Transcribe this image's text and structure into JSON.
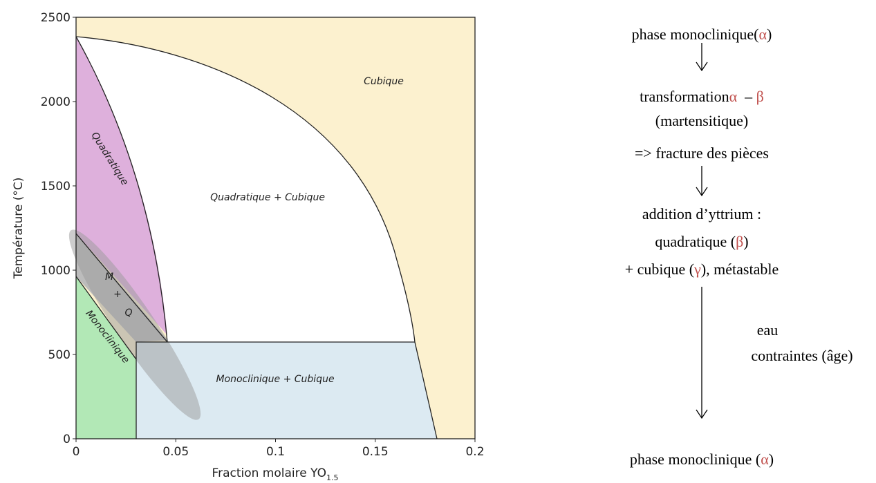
{
  "phase_diagram": {
    "x_label": "Fraction molaire YO",
    "x_label_sub": "1.5",
    "y_label": "Température (°C)",
    "xlim": [
      0,
      0.2
    ],
    "ylim": [
      0,
      2500
    ],
    "xticks": [
      0,
      0.05,
      0.1,
      0.15,
      0.2
    ],
    "yticks": [
      0,
      500,
      1000,
      1500,
      2000,
      2500
    ],
    "regions": [
      "Cubique",
      "Quadratique",
      "Quadratique + Cubique",
      "M",
      "+",
      "Q",
      "Monoclinique",
      "Monoclinique + Cubique"
    ]
  },
  "flow": {
    "accent_color": "#c0504d",
    "lines": [
      [
        "phase monoclinique(",
        {
          "text": "α"
        },
        ")"
      ],
      [
        "transformation",
        {
          "text": "α"
        },
        "  – ",
        {
          "text": "β"
        }
      ],
      [
        "(martensitique)"
      ],
      [
        "=> fracture des pièces"
      ],
      [
        "addition d’yttrium :"
      ],
      [
        "quadratique (",
        {
          "text": "β"
        },
        ")"
      ],
      [
        "+ cubique (",
        {
          "text": "γ"
        },
        "), métastable"
      ],
      [
        "eau"
      ],
      [
        "contraintes (âge)"
      ],
      [
        "phase monoclinique (",
        {
          "text": "α"
        },
        ")"
      ]
    ]
  }
}
